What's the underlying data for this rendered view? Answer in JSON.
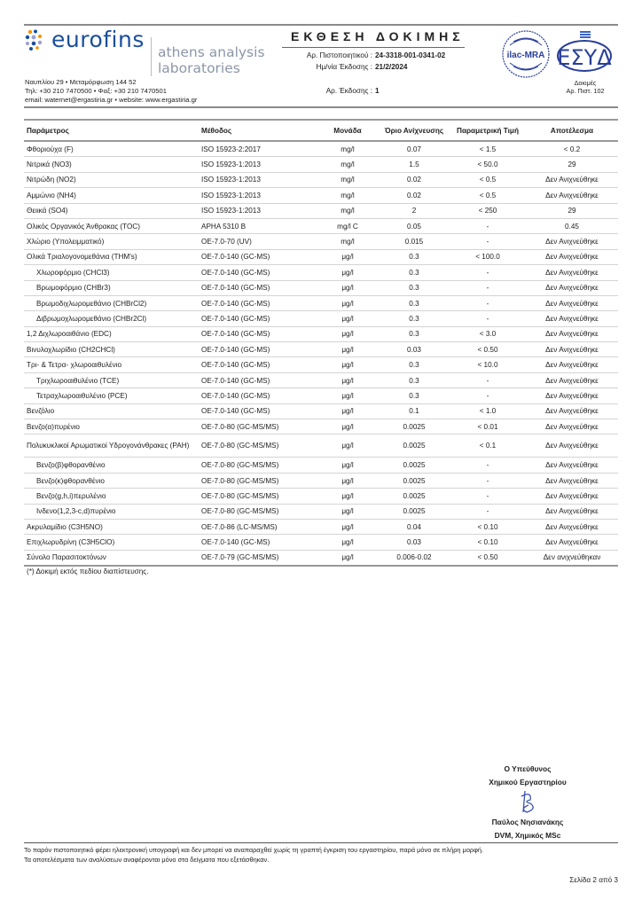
{
  "header": {
    "brand": "eurofins",
    "lab_name_line1": "athens analysis",
    "lab_name_line2": "laboratories",
    "address": "Ναυπλίου 29 • Μεταμόρφωση 144 52",
    "phone": "Τηλ: +30 210 7470500 • Φαξ: +30 210 7470501",
    "contact": "email: waternet@ergastiria.gr • website: www.ergastiria.gr",
    "report_title": "ΕΚΘΕΣΗ ΔΟΚΙΜΗΣ",
    "certificate_label": "Αρ. Πιστοποιητικού :",
    "certificate_no": "24-3318-001-0341-02",
    "issue_date_label": "Ημ/νία Έκδοσης :",
    "issue_date": "21/2/2024",
    "issue_no_label": "Αρ. Έκδοσης :",
    "issue_no": "1",
    "ilac_logo": "ilac-MRA",
    "esyd_logo": "ESYD",
    "accreditation_line1": "Δοκιμές",
    "accreditation_line2": "Αρ. Πιστ. 102"
  },
  "table": {
    "columns": [
      "Παράμετρος",
      "Μέθοδος",
      "Μονάδα",
      "Όριο Ανίχνευσης",
      "Παραμετρική Τιμή",
      "Αποτέλεσμα"
    ],
    "rows": [
      {
        "p": "Φθοριούχα (F)",
        "m": "ISO 15923-2:2017",
        "u": "mg/l",
        "l": "0.07",
        "v": "< 1.5",
        "r": "< 0.2"
      },
      {
        "p": "Νιτρικά (NO3)",
        "m": "ISO 15923-1:2013",
        "u": "mg/l",
        "l": "1.5",
        "v": "< 50.0",
        "r": "29"
      },
      {
        "p": "Νιτρώδη (NO2)",
        "m": "ISO 15923-1:2013",
        "u": "mg/l",
        "l": "0.02",
        "v": "< 0.5",
        "r": "Δεν Ανιχνεύθηκε"
      },
      {
        "p": "Αμμώνιο (NH4)",
        "m": "ISO 15923-1:2013",
        "u": "mg/l",
        "l": "0.02",
        "v": "< 0.5",
        "r": "Δεν Ανιχνεύθηκε"
      },
      {
        "p": "Θειικά (SO4)",
        "m": "ISO 15923-1:2013",
        "u": "mg/l",
        "l": "2",
        "v": "< 250",
        "r": "29"
      },
      {
        "p": "Ολικός Οργανικός Άνθρακας (TOC)",
        "m": "APHA 5310 B",
        "u": "mg/l C",
        "l": "0.05",
        "v": "-",
        "r": "0.45"
      },
      {
        "p": "Χλώριο (Υπολειμματικό)",
        "m": "OE-7.0-70 (UV)",
        "u": "mg/l",
        "l": "0.015",
        "v": "-",
        "r": "Δεν Ανιχνεύθηκε"
      },
      {
        "p": "Ολικά Τριαλογονομεθάνια (THM's)",
        "m": "OE-7.0-140 (GC-MS)",
        "u": "μg/l",
        "l": "0.3",
        "v": "< 100.0",
        "r": "Δεν Ανιχνεύθηκε"
      },
      {
        "p": "Χλωροφόρμιο (CHCl3)",
        "m": "OE-7.0-140 (GC-MS)",
        "u": "μg/l",
        "l": "0.3",
        "v": "-",
        "r": "Δεν Ανιχνεύθηκε",
        "sub": true
      },
      {
        "p": "Βρωμοφόρμιο (CHBr3)",
        "m": "OE-7.0-140 (GC-MS)",
        "u": "μg/l",
        "l": "0.3",
        "v": "-",
        "r": "Δεν Ανιχνεύθηκε",
        "sub": true
      },
      {
        "p": "Βρωμοδιχλωρομεθάνιο (CHBrCl2)",
        "m": "OE-7.0-140 (GC-MS)",
        "u": "μg/l",
        "l": "0.3",
        "v": "-",
        "r": "Δεν Ανιχνεύθηκε",
        "sub": true
      },
      {
        "p": "Διβρωμοχλωρομεθάνιο (CHBr2Cl)",
        "m": "OE-7.0-140 (GC-MS)",
        "u": "μg/l",
        "l": "0.3",
        "v": "-",
        "r": "Δεν Ανιχνεύθηκε",
        "sub": true
      },
      {
        "p": "1,2 Διχλωροαιθάνιο (EDC)",
        "m": "OE-7.0-140 (GC-MS)",
        "u": "μg/l",
        "l": "0.3",
        "v": "< 3.0",
        "r": "Δεν Ανιχνεύθηκε"
      },
      {
        "p": "Βινυλοχλωρίδιο (CH2CHCl)",
        "m": "OE-7.0-140 (GC-MS)",
        "u": "μg/l",
        "l": "0.03",
        "v": "< 0.50",
        "r": "Δεν Ανιχνεύθηκε"
      },
      {
        "p": "Τρι- & Τετρα- χλωροαιθυλένιο",
        "m": "OE-7.0-140 (GC-MS)",
        "u": "μg/l",
        "l": "0.3",
        "v": "< 10.0",
        "r": "Δεν Ανιχνεύθηκε"
      },
      {
        "p": "Τριχλωροαιθυλένιο (TCE)",
        "m": "OE-7.0-140 (GC-MS)",
        "u": "μg/l",
        "l": "0.3",
        "v": "-",
        "r": "Δεν Ανιχνεύθηκε",
        "sub": true
      },
      {
        "p": "Τετραχλωροαιθυλένιο (PCE)",
        "m": "OE-7.0-140 (GC-MS)",
        "u": "μg/l",
        "l": "0.3",
        "v": "-",
        "r": "Δεν Ανιχνεύθηκε",
        "sub": true
      },
      {
        "p": "Βενζόλιο",
        "m": "OE-7.0-140 (GC-MS)",
        "u": "μg/l",
        "l": "0.1",
        "v": "< 1.0",
        "r": "Δεν Ανιχνεύθηκε"
      },
      {
        "p": "Βενζο(α)πυρένιο",
        "m": "OE-7.0-80 (GC-MS/MS)",
        "u": "μg/l",
        "l": "0.0025",
        "v": "< 0.01",
        "r": "Δεν Ανιχνεύθηκε"
      },
      {
        "p": "Πολυκυκλικοί Αρωματικοί Υδρογονάνθρακες (PAH)",
        "m": "OE-7.0-80 (GC-MS/MS)",
        "u": "μg/l",
        "l": "0.0025",
        "v": "< 0.1",
        "r": "Δεν Ανιχνεύθηκε",
        "tall": true
      },
      {
        "p": "Βενζο(β)φθορανθένιο",
        "m": "OE-7.0-80 (GC-MS/MS)",
        "u": "μg/l",
        "l": "0.0025",
        "v": "-",
        "r": "Δεν Ανιχνεύθηκε",
        "sub": true
      },
      {
        "p": "Βενζο(κ)φθορανθένιο",
        "m": "OE-7.0-80 (GC-MS/MS)",
        "u": "μg/l",
        "l": "0.0025",
        "v": "-",
        "r": "Δεν Ανιχνεύθηκε",
        "sub": true
      },
      {
        "p": "Βενζο(g,h,i)περυλένιο",
        "m": "OE-7.0-80 (GC-MS/MS)",
        "u": "μg/l",
        "l": "0.0025",
        "v": "-",
        "r": "Δεν Ανιχνεύθηκε",
        "sub": true
      },
      {
        "p": "Ινδενο(1,2,3-c,d)πυρένιο",
        "m": "OE-7.0-80 (GC-MS/MS)",
        "u": "μg/l",
        "l": "0.0025",
        "v": "-",
        "r": "Δεν Ανιχνεύθηκε",
        "sub": true
      },
      {
        "p": "Ακρυλαμίδιο (C3H5NO)",
        "m": "OE-7.0-86 (LC-MS/MS)",
        "u": "μg/l",
        "l": "0.04",
        "v": "< 0.10",
        "r": "Δεν Ανιχνεύθηκε"
      },
      {
        "p": "Επιχλωρυδρίνη (C3H5ClO)",
        "m": "OE-7.0-140 (GC-MS)",
        "u": "μg/l",
        "l": "0.03",
        "v": "< 0.10",
        "r": "Δεν Ανιχνεύθηκε"
      },
      {
        "p": "Σύνολο Παρασιτοκτόνων",
        "m": "OE-7.0-79 (GC-MS/MS)",
        "u": "μg/l",
        "l": "0.006-0.02",
        "v": "< 0.50",
        "r": "Δεν ανιχνεύθηκαν"
      }
    ],
    "note": "(*) Δοκιμή εκτός πεδίου διαπίστευσης."
  },
  "signature": {
    "role_line1": "Ο Υπεύθυνος",
    "role_line2": "Χημικού Εργαστηρίου",
    "name": "Παύλος Νησιανάκης",
    "title": "DVM, Χημικός MSc"
  },
  "footer": {
    "line1": "Το παρόν πιστοποιητικό φέρει ηλεκτρονική υπογραφή και δεν μπορεί να αναπαραχθεί χωρίς τη γραπτή έγκριση του εργαστηρίου, παρά μόνο σε πλήρη μορφή.",
    "line2": "Τα αποτελέσματα των αναλύσεων αναφέρονται μόνο στα δείγματα που εξετάσθηκαν.",
    "page": "Σελίδα 2 από 3"
  },
  "colors": {
    "brand_blue": "#1a4f9c",
    "lab_gray": "#8c96a8",
    "rule_gray": "#8a8a8a"
  }
}
